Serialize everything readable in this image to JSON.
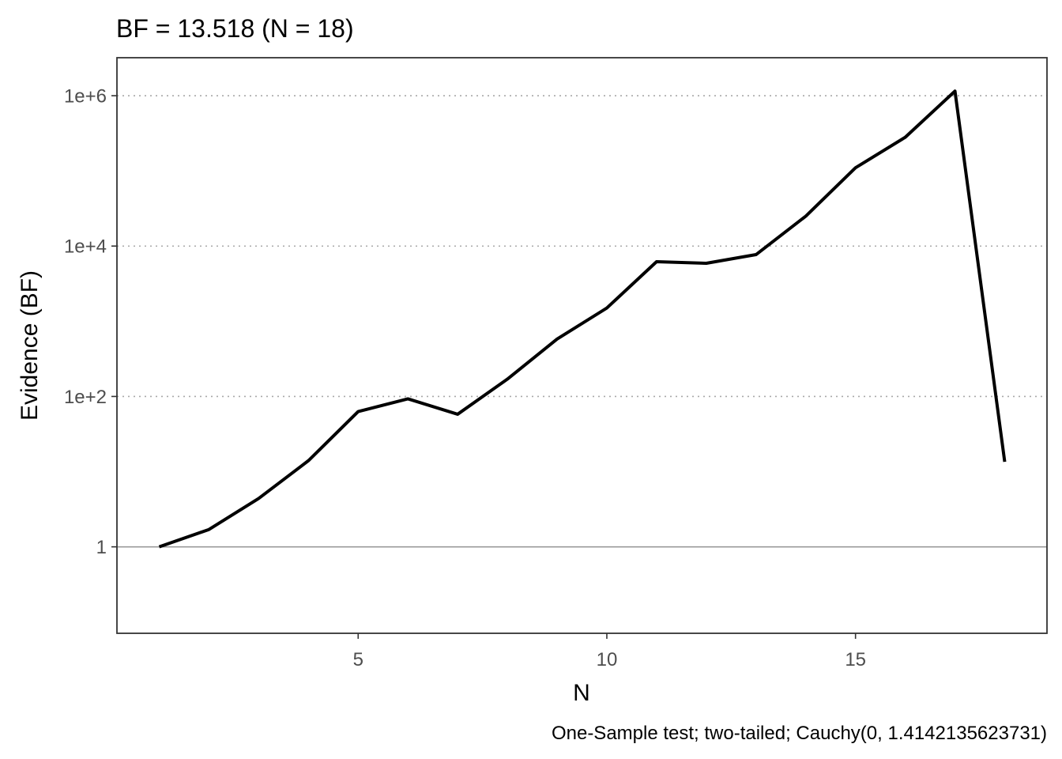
{
  "chart_data": {
    "type": "line",
    "title": "BF = 13.518 (N = 18)",
    "xlabel": "N",
    "ylabel": "Evidence (BF)",
    "caption": "One-Sample test; two-tailed; Cauchy(0, 1.4142135623731)",
    "x_scale": "linear",
    "y_scale": "log10",
    "xlim": [
      0.15,
      18.85
    ],
    "ylim": [
      0.0708,
      3200000
    ],
    "x_ticks": [
      5,
      10,
      15
    ],
    "x_tick_labels": [
      "5",
      "10",
      "15"
    ],
    "y_ticks": [
      1,
      100,
      10000,
      1000000
    ],
    "y_tick_labels": [
      "1",
      "1e+2",
      "1e+4",
      "1e+6"
    ],
    "grid": "horizontal dotted at y ticks",
    "reference_line": 1,
    "series": [
      {
        "x": [
          1,
          2,
          3,
          4,
          5,
          6,
          7,
          8,
          9,
          10,
          11,
          12,
          13,
          14,
          15,
          16,
          17,
          18
        ],
        "values": [
          1.0,
          1.7,
          4.4,
          14,
          63,
          93,
          58,
          170,
          580,
          1500,
          6200,
          5900,
          7700,
          25000,
          110000,
          280000,
          1150000,
          13.518
        ]
      }
    ],
    "colors": {
      "line": "#000000",
      "grid": "#a8a8a8",
      "reference": "#9a9a9a",
      "panel_border": "#333333",
      "tick_text": "#4d4d4d"
    }
  }
}
